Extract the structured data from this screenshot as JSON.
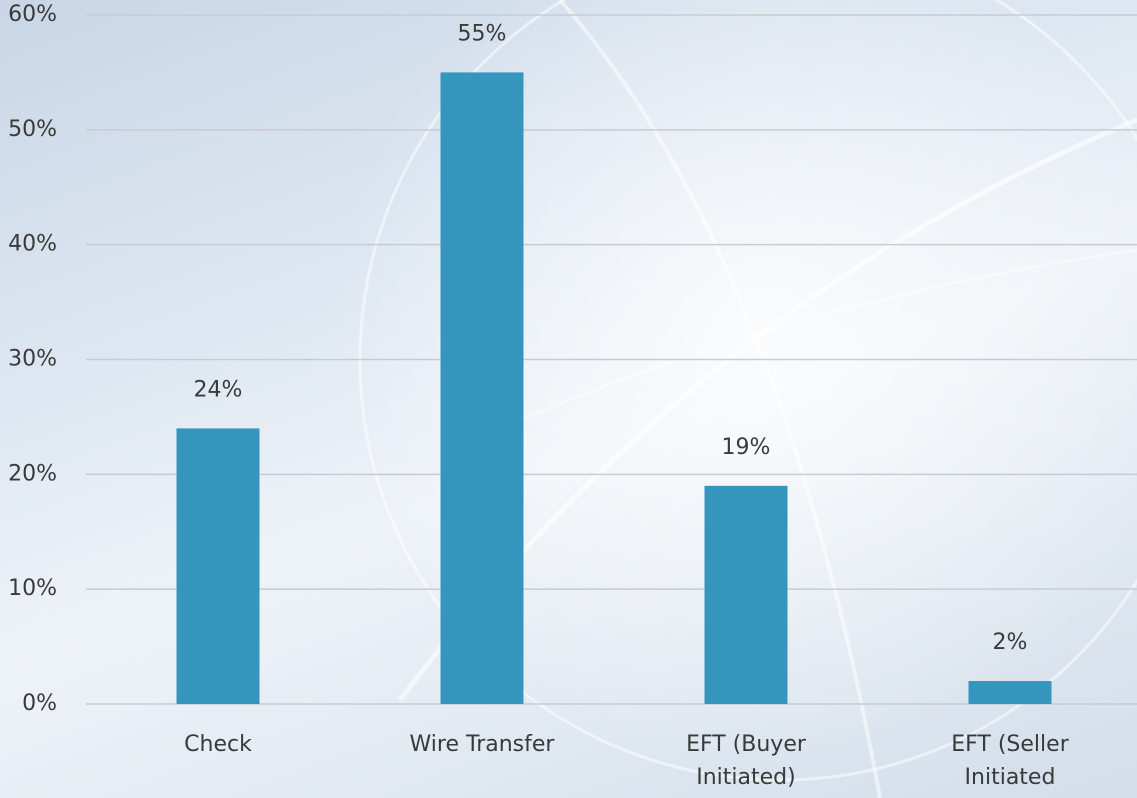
{
  "chart_data": {
    "type": "bar",
    "categories": [
      "Check",
      "Wire Transfer",
      "EFT (Buyer Initiated)",
      "EFT (Seller Initiated"
    ],
    "values": [
      24,
      55,
      19,
      2
    ],
    "value_labels": [
      "24%",
      "55%",
      "19%",
      "2%"
    ],
    "color": "#3496bd",
    "ylim": [
      0,
      60
    ],
    "yticks": [
      {
        "value": 0,
        "label": "0%"
      },
      {
        "value": 10,
        "label": "10%"
      },
      {
        "value": 20,
        "label": "20%"
      },
      {
        "value": 30,
        "label": "30%"
      },
      {
        "value": 40,
        "label": "40%"
      },
      {
        "value": 50,
        "label": "50%"
      },
      {
        "value": 60,
        "label": "60%"
      }
    ],
    "grid": true
  }
}
